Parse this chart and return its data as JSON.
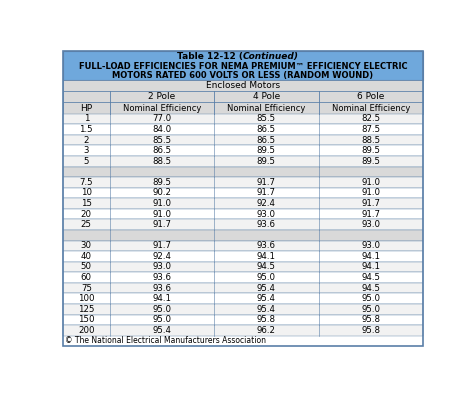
{
  "title_line1a": "Table 12-12 (",
  "title_line1b": "Continued",
  "title_line1c": ")",
  "title_line2": "FULL-LOAD EFFICIENCIES FOR NEMA PREMIUM™ EFFICIENCY ELECTRIC",
  "title_line3": "MOTORS RATED 600 VOLTS OR LESS (RANDOM WOUND)",
  "subtitle": "Enclosed Motors",
  "col_groups": [
    "2 Pole",
    "4 Pole",
    "6 Pole"
  ],
  "col_sub": "Nominal Efficiency",
  "hp_col": "HP",
  "header_bg": "#6fa8dc",
  "subheader_bg": "#d9d9d9",
  "separator_row_bg": "#d9d9d9",
  "border_color": "#5a7fa8",
  "footer": "© The National Electrical Manufacturers Association",
  "rows": [
    [
      "1",
      "77.0",
      "85.5",
      "82.5"
    ],
    [
      "1.5",
      "84.0",
      "86.5",
      "87.5"
    ],
    [
      "2",
      "85.5",
      "86.5",
      "88.5"
    ],
    [
      "3",
      "86.5",
      "89.5",
      "89.5"
    ],
    [
      "5",
      "88.5",
      "89.5",
      "89.5"
    ],
    [
      "",
      "",
      "",
      ""
    ],
    [
      "7.5",
      "89.5",
      "91.7",
      "91.0"
    ],
    [
      "10",
      "90.2",
      "91.7",
      "91.0"
    ],
    [
      "15",
      "91.0",
      "92.4",
      "91.7"
    ],
    [
      "20",
      "91.0",
      "93.0",
      "91.7"
    ],
    [
      "25",
      "91.7",
      "93.6",
      "93.0"
    ],
    [
      "",
      "",
      "",
      ""
    ],
    [
      "30",
      "91.7",
      "93.6",
      "93.0"
    ],
    [
      "40",
      "92.4",
      "94.1",
      "94.1"
    ],
    [
      "50",
      "93.0",
      "94.5",
      "94.1"
    ],
    [
      "60",
      "93.6",
      "95.0",
      "94.5"
    ],
    [
      "75",
      "93.6",
      "95.4",
      "94.5"
    ],
    [
      "100",
      "94.1",
      "95.4",
      "95.0"
    ],
    [
      "125",
      "95.0",
      "95.4",
      "95.0"
    ],
    [
      "150",
      "95.0",
      "95.8",
      "95.8"
    ],
    [
      "200",
      "95.4",
      "96.2",
      "95.8"
    ]
  ]
}
